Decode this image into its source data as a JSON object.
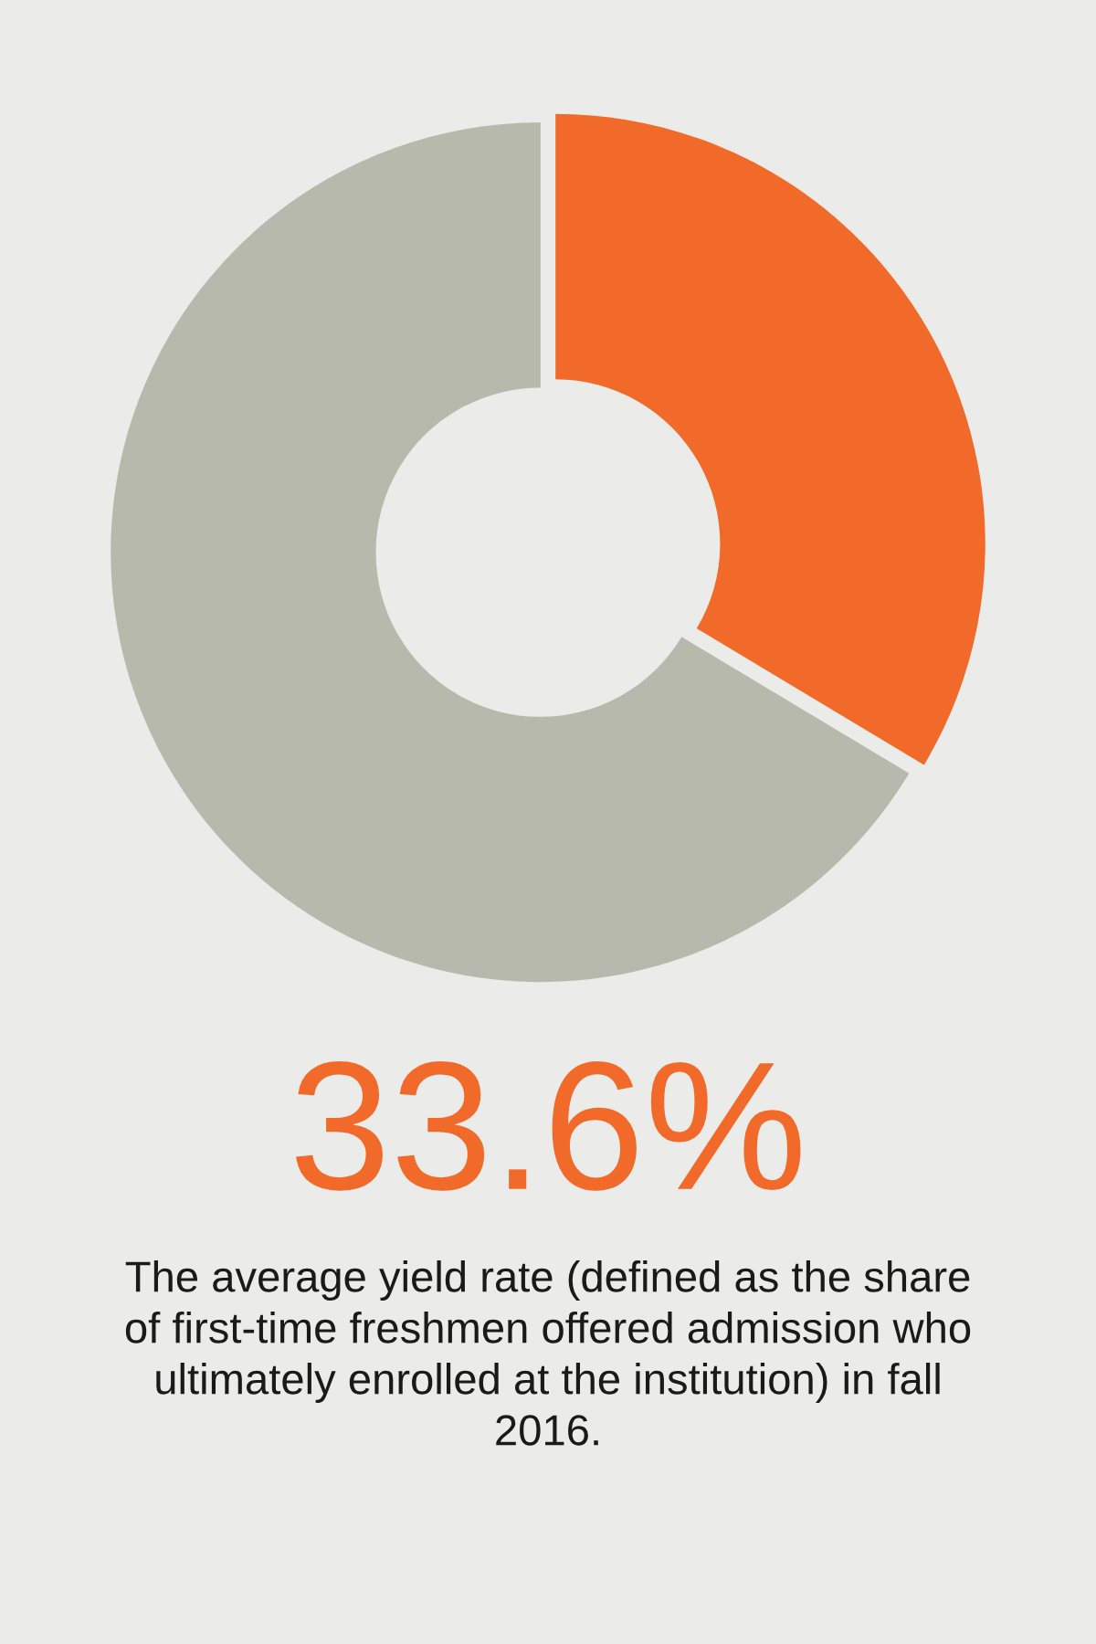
{
  "chart_data": {
    "type": "donut",
    "categories": [
      null,
      null
    ],
    "values": [
      33.6,
      66.4
    ],
    "colors": [
      "#f26a2a",
      "#b8b9ad"
    ],
    "annotations": [
      "33.6%",
      "The average yield rate (defined as the share of first-time freshmen offered admission who ultimately enrolled at the institution) in fall 2016."
    ]
  }
}
